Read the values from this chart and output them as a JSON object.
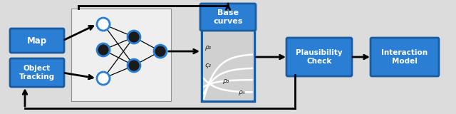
{
  "bg_color": "#dcdcdc",
  "box_color": "#2a7fd4",
  "box_text_color": "white",
  "box_edge_color": "#1a5ca0",
  "map_label": "Map",
  "obj_label": "Object\nTracking",
  "base_label": "Base\ncurves",
  "plaus_label": "Plausibility\nCheck",
  "inter_label": "Interaction\nModel",
  "rho_labels": [
    "ρ₁",
    "ς₂",
    "ρ₃",
    "ρ₄"
  ]
}
